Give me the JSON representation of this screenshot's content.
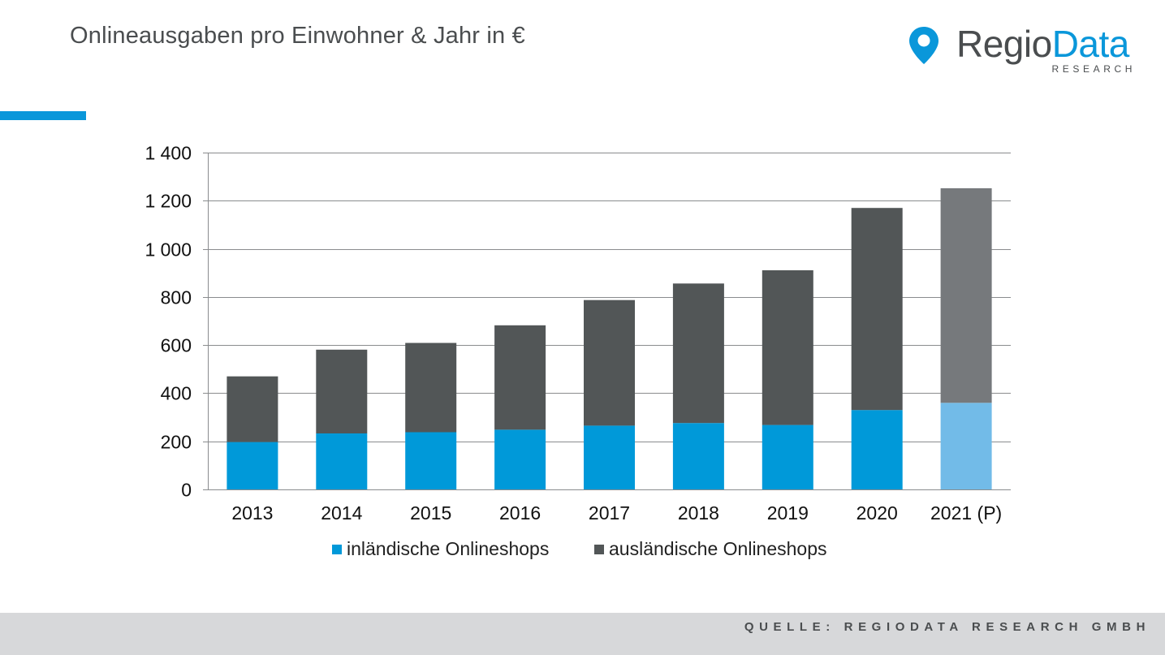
{
  "title": "Onlineausgaben pro Einwohner & Jahr in €",
  "logo": {
    "icon": "map-pin-logo-icon",
    "word_part1": "Regio",
    "word_part2": "Data",
    "subtitle": "RESEARCH",
    "color_dark": "#4a4d4f",
    "color_blue": "#0a97da"
  },
  "accent_color": "#0a97da",
  "footer": {
    "source": "QUELLE: REGIODATA RESEARCH GMBH"
  },
  "chart_data": {
    "type": "bar",
    "stacked": true,
    "title": "",
    "xlabel": "",
    "ylabel": "",
    "ylim": [
      0,
      1400
    ],
    "yticks": [
      0,
      200,
      400,
      600,
      800,
      1000,
      1200,
      1400
    ],
    "ytick_labels": [
      "0",
      "200",
      "400",
      "600",
      "800",
      "1 000",
      "1 200",
      "1 400"
    ],
    "grid": true,
    "categories": [
      "2013",
      "2014",
      "2015",
      "2016",
      "2017",
      "2018",
      "2019",
      "2020",
      "2021 (P)"
    ],
    "series": [
      {
        "name": "inländische Onlineshops",
        "color": "#0099d9",
        "projection_color": "#72bbe8",
        "values": [
          197,
          233,
          238,
          248,
          265,
          276,
          268,
          330,
          360
        ]
      },
      {
        "name": "ausländische Onlineshops",
        "color": "#525657",
        "projection_color": "#76797c",
        "values": [
          273,
          348,
          371,
          434,
          522,
          580,
          643,
          840,
          892
        ]
      }
    ],
    "projection_category": "2021 (P)",
    "legend_position": "bottom"
  }
}
